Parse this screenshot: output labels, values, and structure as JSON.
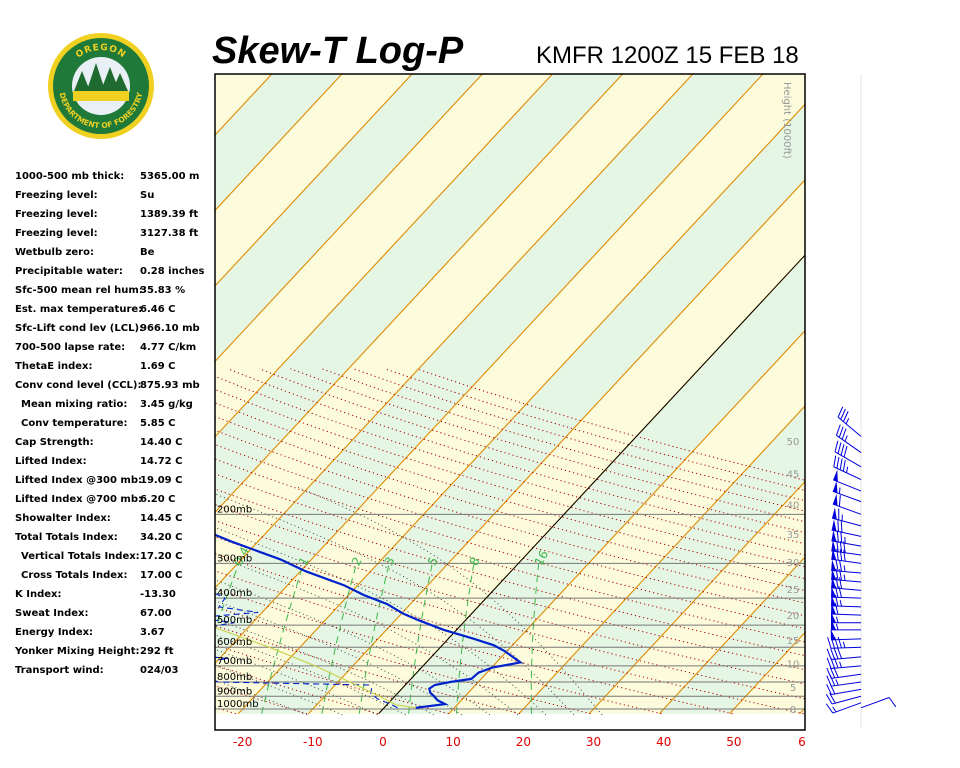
{
  "header": {
    "title": "Skew-T Log-P",
    "station_time": "KMFR 1200Z 15 FEB 18"
  },
  "logo": {
    "top_text": "OREGON",
    "bottom_text": "DEPARTMENT OF FORESTRY"
  },
  "indices": [
    {
      "label": "1000-500 mb thick:",
      "value": "5365.00 m"
    },
    {
      "label": "Freezing level:",
      "value": "Su"
    },
    {
      "label": "Freezing level:",
      "value": "1389.39 ft"
    },
    {
      "label": "Freezing level:",
      "value": "3127.38 ft"
    },
    {
      "label": "Wetbulb zero:",
      "value": "Be"
    },
    {
      "label": "Precipitable water:",
      "value": "0.28 inches"
    },
    {
      "label": "Sfc-500 mean rel hum:",
      "value": "35.83 %"
    },
    {
      "label": "Est. max temperature:",
      "value": "6.46 C"
    },
    {
      "label": "Sfc-Lift cond lev (LCL):",
      "value": "966.10 mb"
    },
    {
      "label": "700-500 lapse rate:",
      "value": "4.77 C/km"
    },
    {
      "label": "ThetaE index:",
      "value": "1.69 C"
    },
    {
      "label": "Conv cond level (CCL):",
      "value": "875.93 mb"
    },
    {
      "label": "Mean mixing ratio:",
      "value": "3.45 g/kg",
      "indent": true
    },
    {
      "label": "Conv temperature:",
      "value": "5.85 C",
      "indent": true
    },
    {
      "label": "Cap Strength:",
      "value": "14.40 C"
    },
    {
      "label": "Lifted Index:",
      "value": "14.72 C"
    },
    {
      "label": "Lifted Index @300 mb:",
      "value": "19.09 C"
    },
    {
      "label": "Lifted Index @700 mb:",
      "value": "6.20 C"
    },
    {
      "label": "Showalter Index:",
      "value": "14.45 C"
    },
    {
      "label": "Total Totals Index:",
      "value": "34.20 C"
    },
    {
      "label": "Vertical Totals Index:",
      "value": "17.20 C",
      "indent": true
    },
    {
      "label": "Cross Totals Index:",
      "value": "17.00 C",
      "indent": true
    },
    {
      "label": "K Index:",
      "value": "-13.30"
    },
    {
      "label": "Sweat Index:",
      "value": "67.00"
    },
    {
      "label": "Energy Index:",
      "value": "3.67"
    },
    {
      "label": "Yonker Mixing Height:",
      "value": "292 ft"
    },
    {
      "label": "Transport wind:",
      "value": "024/03"
    }
  ],
  "chart_data": {
    "type": "line",
    "title": "Skew-T Log-P",
    "subtitle": "KMFR 1200Z 15 FEB 18",
    "x_axis": {
      "unit": "C",
      "ticks": [
        "-20",
        "-10",
        "0",
        "10",
        "20",
        "30",
        "40",
        "50",
        "6"
      ],
      "range": [
        -24,
        60
      ]
    },
    "pressure_labels": [
      "200mb",
      "300mb",
      "400mb",
      "500mb",
      "600mb",
      "700mb",
      "800mb",
      "900mb",
      "1000mb"
    ],
    "height_axis": {
      "label": "Height (1000ft)",
      "ticks": [
        "0",
        "5",
        "10",
        "15",
        "20",
        "25",
        "30",
        "35",
        "40",
        "45",
        "50"
      ]
    },
    "mixing_ratio_labels": [
      "0.4",
      "1",
      "2",
      "3",
      "5",
      "8",
      "16"
    ],
    "series": [
      {
        "role": "temperature",
        "color": "#0022cc",
        "points": [
          {
            "p": 990,
            "t": 4.5
          },
          {
            "p": 960,
            "t": 8.2
          },
          {
            "p": 930,
            "t": 6.6
          },
          {
            "p": 900,
            "t": 5.6
          },
          {
            "p": 875,
            "t": 4.6
          },
          {
            "p": 845,
            "t": 3.9
          },
          {
            "p": 820,
            "t": 4.2
          },
          {
            "p": 800,
            "t": 6.0
          },
          {
            "p": 780,
            "t": 8.6
          },
          {
            "p": 740,
            "t": 8.8
          },
          {
            "p": 710,
            "t": 10.1
          },
          {
            "p": 680,
            "t": 13.4
          },
          {
            "p": 620,
            "t": 9.7
          },
          {
            "p": 590,
            "t": 7.3
          },
          {
            "p": 560,
            "t": 3.7
          },
          {
            "p": 520,
            "t": -1.8
          },
          {
            "p": 480,
            "t": -6.7
          },
          {
            "p": 455,
            "t": -9.7
          },
          {
            "p": 420,
            "t": -13.3
          },
          {
            "p": 390,
            "t": -17.8
          },
          {
            "p": 360,
            "t": -21.9
          },
          {
            "p": 320,
            "t": -29.3
          },
          {
            "p": 290,
            "t": -34.5
          },
          {
            "p": 250,
            "t": -43.9
          },
          {
            "p": 220,
            "t": -51.3
          },
          {
            "p": 200,
            "t": -55.5
          },
          {
            "p": 190,
            "t": -55.0
          },
          {
            "p": 175,
            "t": -53.8
          },
          {
            "p": 160,
            "t": -54.0
          },
          {
            "p": 145,
            "t": -58.4
          },
          {
            "p": 125,
            "t": -63.0
          },
          {
            "p": 110,
            "t": -64.0
          },
          {
            "p": 100,
            "t": -66.0
          }
        ]
      },
      {
        "role": "dewpoint",
        "color": "#0022cc",
        "points": [
          {
            "p": 990,
            "t": 1.9
          },
          {
            "p": 960,
            "t": 0.4
          },
          {
            "p": 920,
            "t": -2.1
          },
          {
            "p": 880,
            "t": -3.8
          },
          {
            "p": 840,
            "t": -4.4
          },
          {
            "p": 820,
            "t": -5.2
          },
          {
            "p": 800,
            "t": -27.0
          },
          {
            "p": 750,
            "t": -33.0
          },
          {
            "p": 720,
            "t": -33.0
          },
          {
            "p": 690,
            "t": -35.5
          },
          {
            "p": 660,
            "t": -28.7
          },
          {
            "p": 640,
            "t": -33.8
          },
          {
            "p": 600,
            "t": -36.5
          },
          {
            "p": 550,
            "t": -42.5
          },
          {
            "p": 510,
            "t": -36.4
          },
          {
            "p": 490,
            "t": -32.6
          },
          {
            "p": 470,
            "t": -38.7
          },
          {
            "p": 450,
            "t": -30.6
          },
          {
            "p": 430,
            "t": -36.9
          },
          {
            "p": 400,
            "t": -37.2
          },
          {
            "p": 360,
            "t": -42.7
          },
          {
            "p": 300,
            "t": -52.5
          },
          {
            "p": 250,
            "t": -62.3
          },
          {
            "p": 200,
            "t": -69.3
          },
          {
            "p": 170,
            "t": -73.6
          },
          {
            "p": 140,
            "t": -77.0
          },
          {
            "p": 120,
            "t": -78.5
          },
          {
            "p": 100,
            "t": -79.0
          }
        ]
      },
      {
        "role": "parcel",
        "color": "#c8d24a",
        "points": [
          {
            "p": 990,
            "t": 4.5
          },
          {
            "p": 966,
            "t": 1.3
          },
          {
            "p": 900,
            "t": -2.2
          },
          {
            "p": 800,
            "t": -8.3
          },
          {
            "p": 700,
            "t": -15.4
          },
          {
            "p": 600,
            "t": -24.4
          },
          {
            "p": 500,
            "t": -36.0
          },
          {
            "p": 400,
            "t": -51.0
          },
          {
            "p": 300,
            "t": -69.0
          },
          {
            "p": 250,
            "t": -80.0
          },
          {
            "p": 200,
            "t": -92.0
          },
          {
            "p": 150,
            "t": -104.0
          },
          {
            "p": 120,
            "t": -112.0
          }
        ]
      }
    ],
    "wind_barbs": [
      {
        "p": 990,
        "dir": 70,
        "spd": 10
      },
      {
        "p": 950,
        "dir": 250,
        "spd": 15
      },
      {
        "p": 900,
        "dir": 255,
        "spd": 20
      },
      {
        "p": 850,
        "dir": 260,
        "spd": 20
      },
      {
        "p": 800,
        "dir": 262,
        "spd": 25
      },
      {
        "p": 750,
        "dir": 262,
        "spd": 30
      },
      {
        "p": 700,
        "dir": 265,
        "spd": 35
      },
      {
        "p": 650,
        "dir": 265,
        "spd": 40
      },
      {
        "p": 600,
        "dir": 268,
        "spd": 45
      },
      {
        "p": 560,
        "dir": 268,
        "spd": 50
      },
      {
        "p": 520,
        "dir": 270,
        "spd": 55
      },
      {
        "p": 490,
        "dir": 270,
        "spd": 55
      },
      {
        "p": 460,
        "dir": 272,
        "spd": 60
      },
      {
        "p": 430,
        "dir": 272,
        "spd": 65
      },
      {
        "p": 400,
        "dir": 272,
        "spd": 70
      },
      {
        "p": 375,
        "dir": 275,
        "spd": 70
      },
      {
        "p": 350,
        "dir": 275,
        "spd": 75
      },
      {
        "p": 325,
        "dir": 275,
        "spd": 75
      },
      {
        "p": 300,
        "dir": 278,
        "spd": 80
      },
      {
        "p": 280,
        "dir": 278,
        "spd": 80
      },
      {
        "p": 260,
        "dir": 280,
        "spd": 75
      },
      {
        "p": 240,
        "dir": 282,
        "spd": 70
      },
      {
        "p": 220,
        "dir": 285,
        "spd": 65
      },
      {
        "p": 200,
        "dir": 290,
        "spd": 60
      },
      {
        "p": 180,
        "dir": 290,
        "spd": 55
      },
      {
        "p": 165,
        "dir": 292,
        "spd": 50
      },
      {
        "p": 150,
        "dir": 295,
        "spd": 45
      },
      {
        "p": 135,
        "dir": 300,
        "spd": 40
      },
      {
        "p": 120,
        "dir": 305,
        "spd": 35
      },
      {
        "p": 105,
        "dir": 310,
        "spd": 35
      }
    ]
  }
}
